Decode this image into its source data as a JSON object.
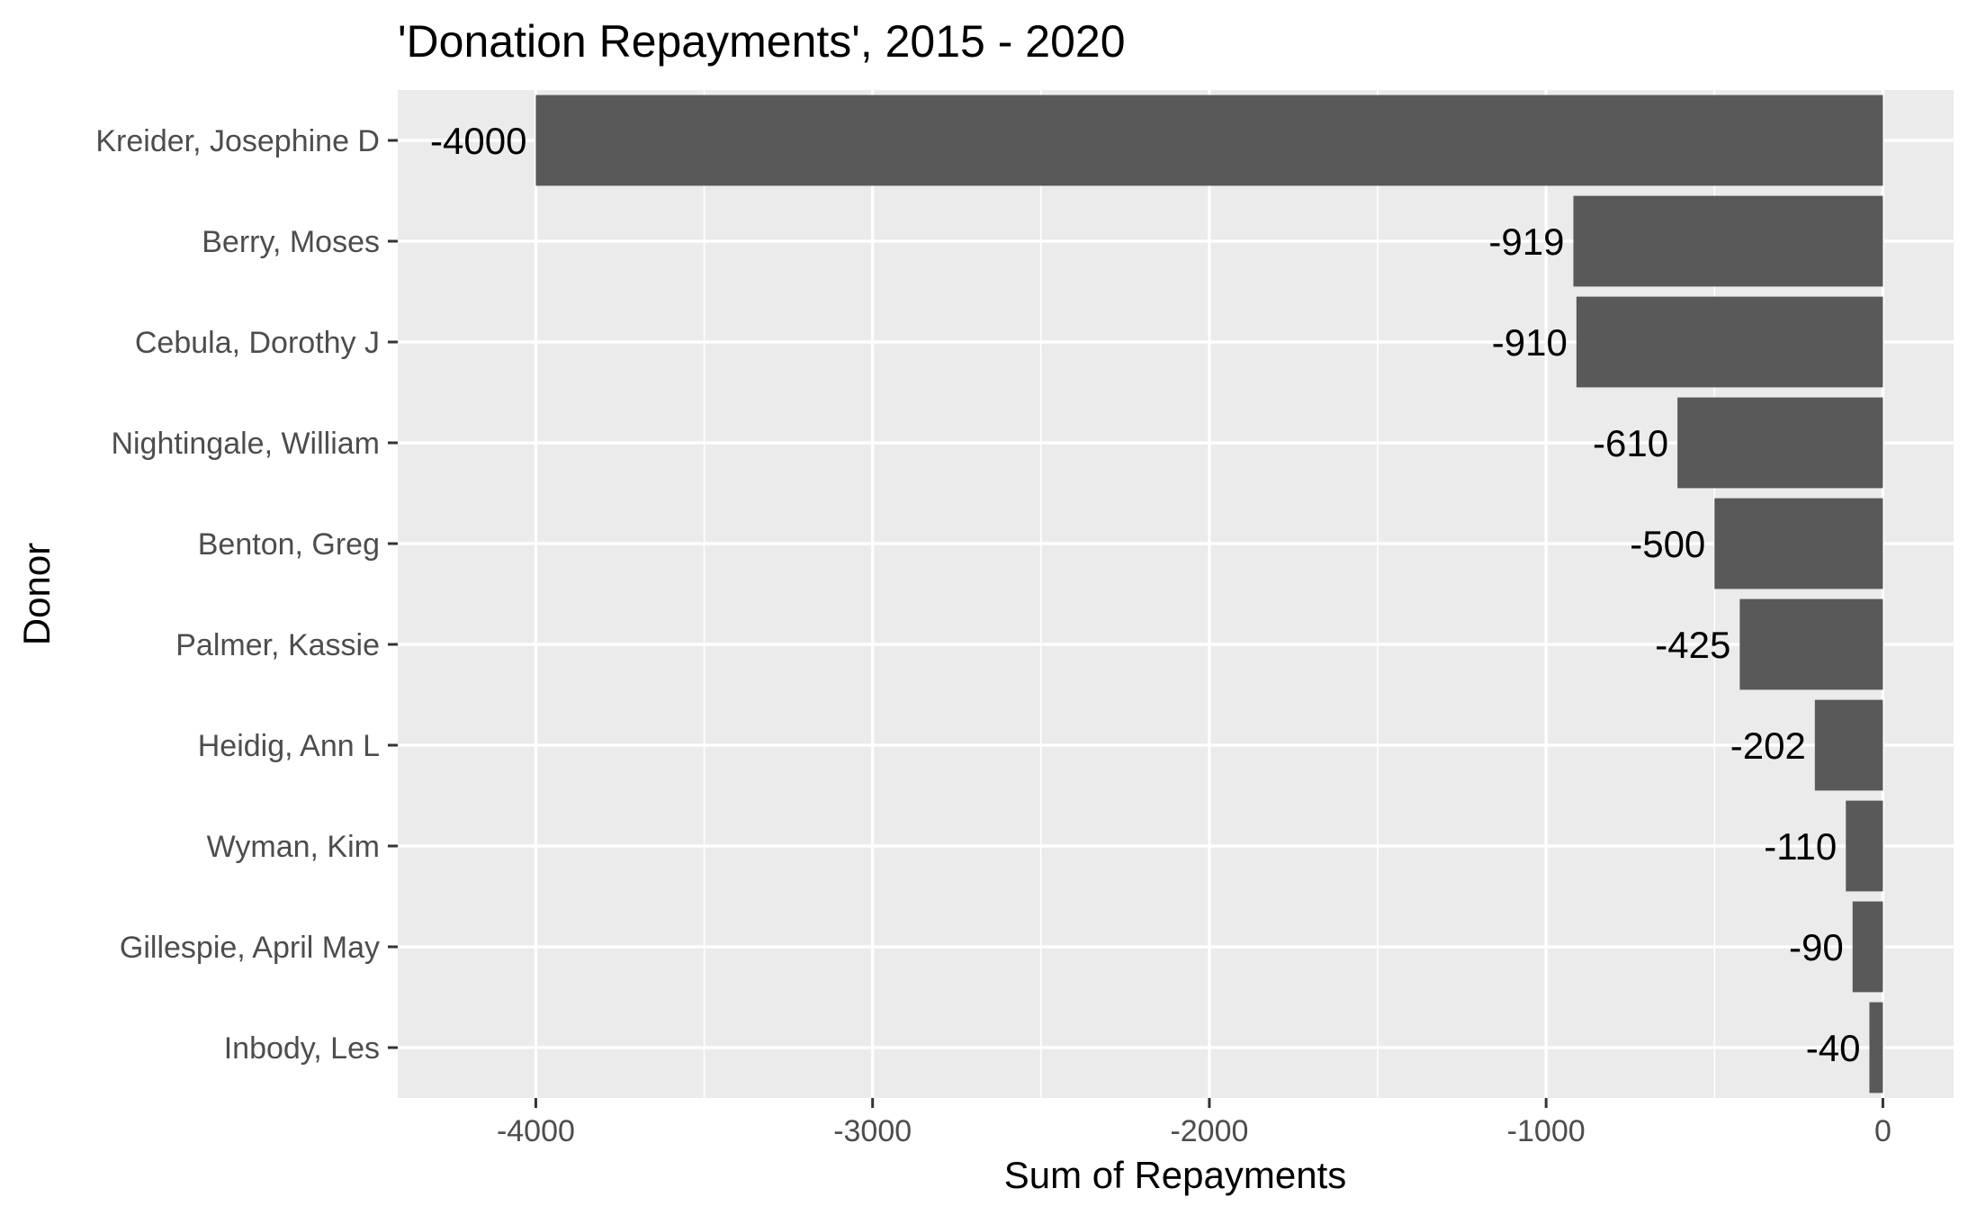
{
  "chart_data": {
    "type": "bar",
    "orientation": "horizontal",
    "title": "'Donation Repayments', 2015 - 2020",
    "xlabel": "Sum of Repayments",
    "ylabel": "Donor",
    "categories": [
      "Kreider, Josephine D",
      "Berry, Moses",
      "Cebula, Dorothy J",
      "Nightingale, William",
      "Benton, Greg",
      "Palmer, Kassie",
      "Heidig, Ann L",
      "Wyman, Kim",
      "Gillespie, April May",
      "Inbody, Les"
    ],
    "values": [
      -4000,
      -919,
      -910,
      -610,
      -500,
      -425,
      -202,
      -110,
      -90,
      -40
    ],
    "data_labels": [
      "-4000",
      "-919",
      "-910",
      "-610",
      "-500",
      "-425",
      "-202",
      "-110",
      "-90",
      "-40"
    ],
    "xlim": [
      -4410,
      210
    ],
    "x_ticks": [
      -4000,
      -3000,
      -2000,
      -1000,
      0
    ],
    "x_tick_labels": [
      "-4000",
      "-3000",
      "-2000",
      "-1000",
      "0"
    ],
    "x_minor_ticks": [
      -3500,
      -2500,
      -1500,
      -500
    ],
    "grid": true,
    "legend": "none",
    "colors": {
      "bar": "#595959",
      "panel": "#ebebeb",
      "grid": "#ffffff",
      "tick_text": "#4d4d4d",
      "tick_mark": "#333333",
      "text": "#000000"
    }
  }
}
